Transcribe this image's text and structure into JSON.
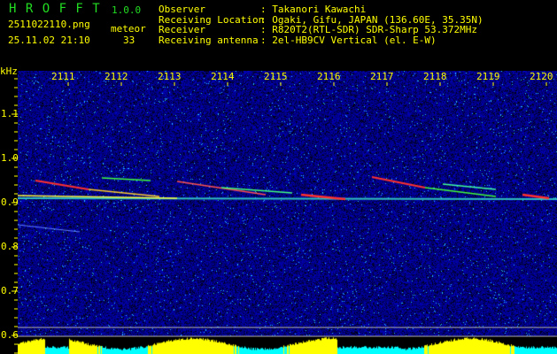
{
  "app": {
    "name": "H R O F F T",
    "version": "1.0.0"
  },
  "file": {
    "name": "2511022110.png",
    "datetime": "25.11.02 21:10",
    "count_label": "meteor",
    "count": "33"
  },
  "info": [
    {
      "label": "Observer",
      "value": ": Takanori Kawachi"
    },
    {
      "label": "Receiving Location",
      "value": ": Ogaki, Gifu, JAPAN (136.60E, 35.35N)"
    },
    {
      "label": "Receiver",
      "value": ": R820T2(RTL-SDR) SDR-Sharp 53.372MHz"
    },
    {
      "label": "Receiving antenna",
      "value": ": 2el-HB9CV Vertical (el. E-W)"
    }
  ],
  "axis": {
    "y_unit": "kHz",
    "x_ticks": [
      "2111",
      "2112",
      "2113",
      "2114",
      "2115",
      "2116",
      "2117",
      "2118",
      "2119",
      "2120"
    ],
    "y_ticks": [
      "1.1",
      "1.0",
      "0.9",
      "0.8",
      "0.7",
      "0.6"
    ]
  },
  "colors": {
    "text": "#ffff00",
    "title": "#22dd22",
    "background": "#0a1a80",
    "signal": "#ff3030",
    "level": "#ffff00",
    "level_low": "#00ffff"
  }
}
